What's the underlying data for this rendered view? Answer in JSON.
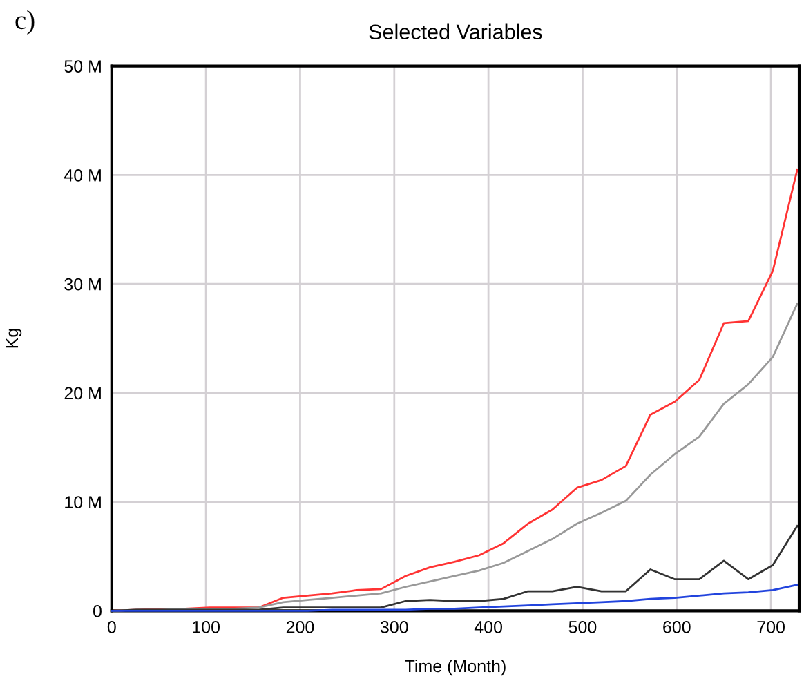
{
  "chart_data": {
    "type": "line",
    "title": "Selected Variables",
    "xlabel": "Time (Month)",
    "ylabel": "Kg",
    "annotations": [
      "c)"
    ],
    "x": [
      0,
      26,
      52,
      78,
      104,
      130,
      156,
      182,
      208,
      234,
      260,
      286,
      312,
      338,
      364,
      390,
      416,
      442,
      468,
      494,
      520,
      546,
      572,
      598,
      624,
      650,
      676,
      702,
      728
    ],
    "series": [
      {
        "color": "#ff3333",
        "values": [
          0,
          0.1,
          0.2,
          0.2,
          0.3,
          0.3,
          0.3,
          1.2,
          1.4,
          1.6,
          1.9,
          2.0,
          3.2,
          4.0,
          4.5,
          5.1,
          6.2,
          8.0,
          9.3,
          11.3,
          12.0,
          13.3,
          18.0,
          19.2,
          21.2,
          26.4,
          26.6,
          31.2,
          40.5
        ]
      },
      {
        "color": "#999999",
        "values": [
          0,
          0.1,
          0.1,
          0.2,
          0.2,
          0.2,
          0.3,
          0.8,
          1.0,
          1.2,
          1.4,
          1.6,
          2.2,
          2.7,
          3.2,
          3.7,
          4.4,
          5.5,
          6.6,
          8.0,
          9.0,
          10.1,
          12.5,
          14.4,
          16.0,
          19.0,
          20.8,
          23.3,
          28.2
        ]
      },
      {
        "color": "#333333",
        "values": [
          0,
          0.1,
          0.1,
          0.1,
          0.1,
          0.1,
          0.1,
          0.3,
          0.3,
          0.3,
          0.3,
          0.3,
          0.9,
          1.0,
          0.9,
          0.9,
          1.1,
          1.8,
          1.8,
          2.2,
          1.8,
          1.8,
          3.8,
          2.9,
          2.9,
          4.6,
          2.9,
          4.2,
          7.8
        ]
      },
      {
        "color": "#2244dd",
        "values": [
          0,
          0,
          0,
          0,
          0,
          0,
          0,
          0,
          0,
          0.1,
          0.1,
          0.1,
          0.1,
          0.2,
          0.2,
          0.3,
          0.4,
          0.5,
          0.6,
          0.7,
          0.8,
          0.9,
          1.1,
          1.2,
          1.4,
          1.6,
          1.7,
          1.9,
          2.4
        ]
      }
    ],
    "xlim": [
      0,
      730
    ],
    "ylim": [
      0,
      50
    ],
    "xticks": [
      0,
      100,
      200,
      300,
      400,
      500,
      600,
      700
    ],
    "yticks": [
      0,
      {
        "value": 10,
        "label": "10 M"
      },
      {
        "value": 20,
        "label": "20 M"
      },
      {
        "value": 30,
        "label": "30 M"
      },
      {
        "value": 40,
        "label": "40 M"
      },
      {
        "value": 50,
        "label": "50 M"
      }
    ],
    "grid": true,
    "legend": false,
    "marker": "none",
    "line_style": "solid"
  }
}
